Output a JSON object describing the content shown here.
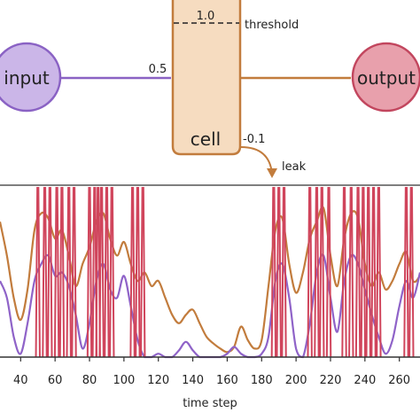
{
  "diagram": {
    "input_label": "input",
    "output_label": "output",
    "cell_label": "cell",
    "threshold_value": "1.0",
    "threshold_label": "threshold",
    "input_weight": "0.5",
    "leak_value": "-0.1",
    "leak_label": "leak"
  },
  "colors": {
    "input_fill": "#cbb6e8",
    "input_stroke": "#8a62c4",
    "cell_fill": "#f6dcc0",
    "cell_stroke": "#c27c3d",
    "output_fill": "#e8a0ac",
    "output_stroke": "#c2465e",
    "purple_series": "#8f63c8",
    "orange_series": "#c27c3d",
    "red_series": "#d0455c"
  },
  "chart_data": {
    "type": "line",
    "xlabel": "time step",
    "ylabel": "",
    "xlim": [
      28,
      272
    ],
    "x_ticks": [
      40,
      60,
      80,
      100,
      120,
      140,
      160,
      180,
      200,
      220,
      240,
      260
    ],
    "series": [
      {
        "key": "purple",
        "x": [
          28,
          32,
          36,
          40,
          44,
          48,
          52,
          56,
          60,
          64,
          68,
          72,
          76,
          80,
          84,
          88,
          92,
          96,
          100,
          104,
          108,
          112,
          116,
          120,
          124,
          128,
          132,
          136,
          140,
          144,
          148,
          152,
          156,
          160,
          164,
          168,
          172,
          176,
          180,
          184,
          188,
          192,
          196,
          200,
          204,
          208,
          212,
          216,
          220,
          224,
          228,
          232,
          236,
          240,
          244,
          248,
          252,
          256,
          260,
          264,
          268,
          272
        ],
        "values": [
          0.45,
          0.35,
          0.12,
          0.02,
          0.2,
          0.45,
          0.55,
          0.6,
          0.48,
          0.5,
          0.42,
          0.25,
          0.05,
          0.2,
          0.45,
          0.55,
          0.4,
          0.35,
          0.48,
          0.3,
          0.1,
          0.0,
          0.0,
          0.02,
          0.0,
          0.0,
          0.04,
          0.09,
          0.04,
          0.0,
          0.0,
          0.0,
          0.0,
          0.02,
          0.06,
          0.02,
          0.0,
          0.0,
          0.02,
          0.12,
          0.45,
          0.55,
          0.35,
          0.05,
          0.0,
          0.2,
          0.5,
          0.6,
          0.35,
          0.15,
          0.45,
          0.6,
          0.55,
          0.4,
          0.25,
          0.12,
          0.02,
          0.1,
          0.3,
          0.45,
          0.35,
          0.5
        ]
      },
      {
        "key": "orange",
        "x": [
          28,
          32,
          36,
          40,
          44,
          48,
          52,
          56,
          60,
          64,
          68,
          72,
          76,
          80,
          84,
          88,
          92,
          96,
          100,
          104,
          108,
          112,
          116,
          120,
          124,
          128,
          132,
          136,
          140,
          144,
          148,
          152,
          156,
          160,
          164,
          168,
          172,
          176,
          180,
          184,
          188,
          192,
          196,
          200,
          204,
          208,
          212,
          216,
          220,
          224,
          228,
          232,
          236,
          240,
          244,
          248,
          252,
          256,
          260,
          264,
          268,
          272
        ],
        "values": [
          0.8,
          0.6,
          0.35,
          0.22,
          0.4,
          0.75,
          0.85,
          0.82,
          0.7,
          0.75,
          0.6,
          0.42,
          0.55,
          0.65,
          0.8,
          0.85,
          0.7,
          0.6,
          0.68,
          0.55,
          0.45,
          0.5,
          0.42,
          0.45,
          0.35,
          0.25,
          0.2,
          0.25,
          0.28,
          0.2,
          0.12,
          0.08,
          0.05,
          0.03,
          0.06,
          0.18,
          0.1,
          0.05,
          0.1,
          0.42,
          0.75,
          0.82,
          0.55,
          0.38,
          0.5,
          0.7,
          0.8,
          0.88,
          0.6,
          0.42,
          0.7,
          0.85,
          0.82,
          0.55,
          0.42,
          0.5,
          0.4,
          0.45,
          0.55,
          0.62,
          0.45,
          0.48
        ]
      },
      {
        "key": "red_spikes",
        "spike_times": [
          50,
          54,
          57,
          61,
          64,
          68,
          71,
          80,
          83,
          85,
          87,
          90,
          93,
          105,
          108,
          111,
          187,
          190,
          193,
          208,
          212,
          215,
          219,
          228,
          232,
          236,
          239,
          242,
          245,
          248,
          264,
          267
        ],
        "spike_height": 1.0
      }
    ]
  }
}
